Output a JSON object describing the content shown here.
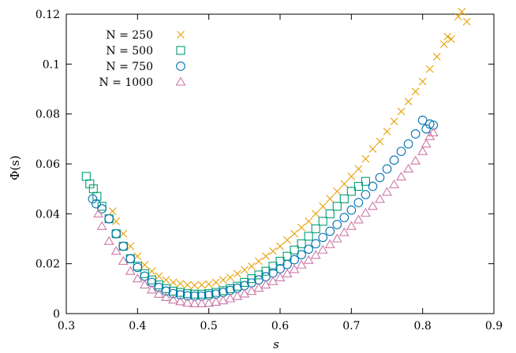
{
  "chart_data": {
    "type": "scatter",
    "title": "",
    "xlabel": "s",
    "ylabel": "Φ(s)",
    "xlim": [
      0.3,
      0.9
    ],
    "ylim": [
      0,
      0.12
    ],
    "xticks": [
      "0.3",
      "0.4",
      "0.5",
      "0.6",
      "0.7",
      "0.8",
      "0.9"
    ],
    "yticks": [
      "0",
      "0.02",
      "0.04",
      "0.06",
      "0.08",
      "0.1",
      "0.12"
    ],
    "grid": false,
    "legend_position": "top-left",
    "series": [
      {
        "name": "N = 250",
        "marker": "x",
        "color": "#e69f00",
        "points": [
          [
            0.365,
            0.041
          ],
          [
            0.37,
            0.037
          ],
          [
            0.38,
            0.032
          ],
          [
            0.39,
            0.027
          ],
          [
            0.4,
            0.023
          ],
          [
            0.41,
            0.0195
          ],
          [
            0.42,
            0.017
          ],
          [
            0.43,
            0.015
          ],
          [
            0.44,
            0.0135
          ],
          [
            0.45,
            0.0125
          ],
          [
            0.46,
            0.012
          ],
          [
            0.47,
            0.0115
          ],
          [
            0.48,
            0.0113
          ],
          [
            0.49,
            0.0115
          ],
          [
            0.5,
            0.0118
          ],
          [
            0.51,
            0.0125
          ],
          [
            0.52,
            0.0135
          ],
          [
            0.53,
            0.0145
          ],
          [
            0.54,
            0.016
          ],
          [
            0.55,
            0.0175
          ],
          [
            0.56,
            0.019
          ],
          [
            0.57,
            0.021
          ],
          [
            0.58,
            0.023
          ],
          [
            0.59,
            0.025
          ],
          [
            0.6,
            0.027
          ],
          [
            0.61,
            0.0295
          ],
          [
            0.62,
            0.032
          ],
          [
            0.63,
            0.0345
          ],
          [
            0.64,
            0.037
          ],
          [
            0.65,
            0.04
          ],
          [
            0.66,
            0.043
          ],
          [
            0.67,
            0.046
          ],
          [
            0.68,
            0.049
          ],
          [
            0.69,
            0.052
          ],
          [
            0.7,
            0.055
          ],
          [
            0.71,
            0.058
          ],
          [
            0.72,
            0.062
          ],
          [
            0.73,
            0.066
          ],
          [
            0.74,
            0.069
          ],
          [
            0.75,
            0.073
          ],
          [
            0.76,
            0.077
          ],
          [
            0.77,
            0.081
          ],
          [
            0.78,
            0.085
          ],
          [
            0.79,
            0.089
          ],
          [
            0.8,
            0.093
          ],
          [
            0.81,
            0.098
          ],
          [
            0.82,
            0.103
          ],
          [
            0.83,
            0.108
          ],
          [
            0.835,
            0.111
          ],
          [
            0.84,
            0.11
          ],
          [
            0.85,
            0.119
          ],
          [
            0.855,
            0.121
          ],
          [
            0.862,
            0.117
          ]
        ]
      },
      {
        "name": "N = 500",
        "marker": "square",
        "color": "#009e73",
        "points": [
          [
            0.328,
            0.055
          ],
          [
            0.333,
            0.052
          ],
          [
            0.338,
            0.05
          ],
          [
            0.343,
            0.047
          ],
          [
            0.35,
            0.043
          ],
          [
            0.36,
            0.038
          ],
          [
            0.37,
            0.032
          ],
          [
            0.38,
            0.027
          ],
          [
            0.39,
            0.022
          ],
          [
            0.4,
            0.019
          ],
          [
            0.41,
            0.016
          ],
          [
            0.42,
            0.0135
          ],
          [
            0.43,
            0.0115
          ],
          [
            0.44,
            0.01
          ],
          [
            0.45,
            0.009
          ],
          [
            0.46,
            0.0085
          ],
          [
            0.47,
            0.008
          ],
          [
            0.48,
            0.0078
          ],
          [
            0.49,
            0.0078
          ],
          [
            0.5,
            0.008
          ],
          [
            0.51,
            0.0085
          ],
          [
            0.52,
            0.0092
          ],
          [
            0.53,
            0.01
          ],
          [
            0.54,
            0.011
          ],
          [
            0.55,
            0.0125
          ],
          [
            0.56,
            0.014
          ],
          [
            0.57,
            0.0155
          ],
          [
            0.58,
            0.017
          ],
          [
            0.59,
            0.019
          ],
          [
            0.6,
            0.021
          ],
          [
            0.61,
            0.023
          ],
          [
            0.62,
            0.0255
          ],
          [
            0.63,
            0.028
          ],
          [
            0.64,
            0.031
          ],
          [
            0.65,
            0.034
          ],
          [
            0.66,
            0.037
          ],
          [
            0.67,
            0.04
          ],
          [
            0.68,
            0.043
          ],
          [
            0.69,
            0.046
          ],
          [
            0.7,
            0.049
          ],
          [
            0.71,
            0.051
          ],
          [
            0.72,
            0.053
          ]
        ]
      },
      {
        "name": "N = 750",
        "marker": "circle",
        "color": "#0072b2",
        "points": [
          [
            0.337,
            0.046
          ],
          [
            0.342,
            0.044
          ],
          [
            0.35,
            0.042
          ],
          [
            0.36,
            0.038
          ],
          [
            0.37,
            0.032
          ],
          [
            0.38,
            0.027
          ],
          [
            0.39,
            0.022
          ],
          [
            0.4,
            0.0185
          ],
          [
            0.41,
            0.015
          ],
          [
            0.42,
            0.0125
          ],
          [
            0.43,
            0.0105
          ],
          [
            0.44,
            0.009
          ],
          [
            0.45,
            0.008
          ],
          [
            0.46,
            0.0075
          ],
          [
            0.47,
            0.0071
          ],
          [
            0.48,
            0.007
          ],
          [
            0.49,
            0.007
          ],
          [
            0.5,
            0.0073
          ],
          [
            0.51,
            0.0078
          ],
          [
            0.52,
            0.0085
          ],
          [
            0.53,
            0.0093
          ],
          [
            0.54,
            0.0102
          ],
          [
            0.55,
            0.0112
          ],
          [
            0.56,
            0.0123
          ],
          [
            0.57,
            0.0135
          ],
          [
            0.58,
            0.0148
          ],
          [
            0.59,
            0.0163
          ],
          [
            0.6,
            0.018
          ],
          [
            0.61,
            0.0197
          ],
          [
            0.62,
            0.0216
          ],
          [
            0.63,
            0.0236
          ],
          [
            0.64,
            0.0258
          ],
          [
            0.65,
            0.028
          ],
          [
            0.66,
            0.0305
          ],
          [
            0.67,
            0.033
          ],
          [
            0.68,
            0.0357
          ],
          [
            0.69,
            0.0385
          ],
          [
            0.7,
            0.0415
          ],
          [
            0.71,
            0.0445
          ],
          [
            0.72,
            0.0477
          ],
          [
            0.73,
            0.051
          ],
          [
            0.74,
            0.0545
          ],
          [
            0.75,
            0.058
          ],
          [
            0.76,
            0.0615
          ],
          [
            0.77,
            0.065
          ],
          [
            0.78,
            0.068
          ],
          [
            0.79,
            0.072
          ],
          [
            0.8,
            0.0775
          ],
          [
            0.805,
            0.074
          ],
          [
            0.81,
            0.076
          ],
          [
            0.815,
            0.0755
          ]
        ]
      },
      {
        "name": "N = 1000",
        "marker": "triangle",
        "color": "#cc79a7",
        "points": [
          [
            0.345,
            0.04
          ],
          [
            0.35,
            0.035
          ],
          [
            0.36,
            0.029
          ],
          [
            0.37,
            0.025
          ],
          [
            0.38,
            0.021
          ],
          [
            0.39,
            0.017
          ],
          [
            0.4,
            0.014
          ],
          [
            0.41,
            0.0115
          ],
          [
            0.42,
            0.0095
          ],
          [
            0.43,
            0.0078
          ],
          [
            0.44,
            0.0065
          ],
          [
            0.45,
            0.0055
          ],
          [
            0.46,
            0.0048
          ],
          [
            0.47,
            0.0043
          ],
          [
            0.48,
            0.004
          ],
          [
            0.49,
            0.004
          ],
          [
            0.5,
            0.0042
          ],
          [
            0.51,
            0.0046
          ],
          [
            0.52,
            0.0052
          ],
          [
            0.53,
            0.006
          ],
          [
            0.54,
            0.0069
          ],
          [
            0.55,
            0.0079
          ],
          [
            0.56,
            0.009
          ],
          [
            0.57,
            0.0102
          ],
          [
            0.58,
            0.0115
          ],
          [
            0.59,
            0.0129
          ],
          [
            0.6,
            0.0144
          ],
          [
            0.61,
            0.016
          ],
          [
            0.62,
            0.0177
          ],
          [
            0.63,
            0.0195
          ],
          [
            0.64,
            0.0214
          ],
          [
            0.65,
            0.0234
          ],
          [
            0.66,
            0.0255
          ],
          [
            0.67,
            0.0277
          ],
          [
            0.68,
            0.03
          ],
          [
            0.69,
            0.0325
          ],
          [
            0.7,
            0.035
          ],
          [
            0.71,
            0.0376
          ],
          [
            0.72,
            0.0403
          ],
          [
            0.73,
            0.043
          ],
          [
            0.74,
            0.0458
          ],
          [
            0.75,
            0.0487
          ],
          [
            0.76,
            0.0517
          ],
          [
            0.77,
            0.0548
          ],
          [
            0.78,
            0.058
          ],
          [
            0.79,
            0.0612
          ],
          [
            0.8,
            0.065
          ],
          [
            0.805,
            0.068
          ],
          [
            0.81,
            0.071
          ],
          [
            0.815,
            0.0725
          ]
        ]
      }
    ]
  }
}
